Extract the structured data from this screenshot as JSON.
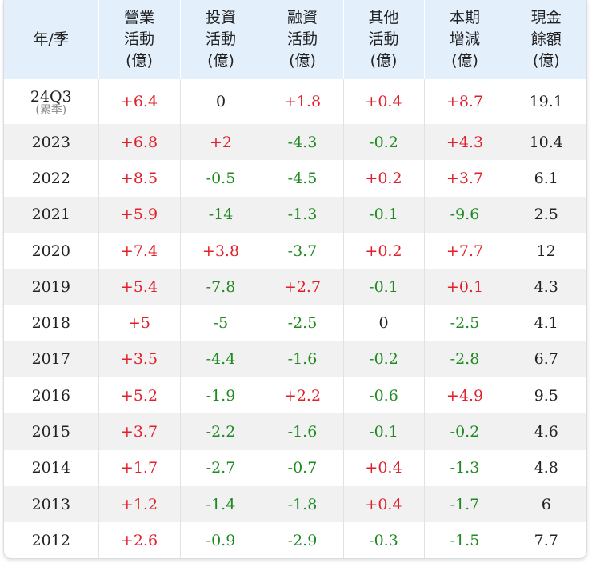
{
  "table": {
    "header": [
      [
        "年/季"
      ],
      [
        "營業",
        "活動",
        "(億)"
      ],
      [
        "投資",
        "活動",
        "(億)"
      ],
      [
        "融資",
        "活動",
        "(億)"
      ],
      [
        "其他",
        "活動",
        "(億)"
      ],
      [
        "本期",
        "增減",
        "(億)"
      ],
      [
        "現金",
        "餘額",
        "(億)"
      ]
    ],
    "rows": [
      {
        "period": "24Q3",
        "note": "(累季)",
        "cells": [
          "+6.4",
          "0",
          "+1.8",
          "+0.4",
          "+8.7",
          "19.1"
        ]
      },
      {
        "period": "2023",
        "cells": [
          "+6.8",
          "+2",
          "-4.3",
          "-0.2",
          "+4.3",
          "10.4"
        ]
      },
      {
        "period": "2022",
        "cells": [
          "+8.5",
          "-0.5",
          "-4.5",
          "+0.2",
          "+3.7",
          "6.1"
        ]
      },
      {
        "period": "2021",
        "cells": [
          "+5.9",
          "-14",
          "-1.3",
          "-0.1",
          "-9.6",
          "2.5"
        ]
      },
      {
        "period": "2020",
        "cells": [
          "+7.4",
          "+3.8",
          "-3.7",
          "+0.2",
          "+7.7",
          "12"
        ]
      },
      {
        "period": "2019",
        "cells": [
          "+5.4",
          "-7.8",
          "+2.7",
          "-0.1",
          "+0.1",
          "4.3"
        ]
      },
      {
        "period": "2018",
        "cells": [
          "+5",
          "-5",
          "-2.5",
          "0",
          "-2.5",
          "4.1"
        ]
      },
      {
        "period": "2017",
        "cells": [
          "+3.5",
          "-4.4",
          "-1.6",
          "-0.2",
          "-2.8",
          "6.7"
        ]
      },
      {
        "period": "2016",
        "cells": [
          "+5.2",
          "-1.9",
          "+2.2",
          "-0.6",
          "+4.9",
          "9.5"
        ]
      },
      {
        "period": "2015",
        "cells": [
          "+3.7",
          "-2.2",
          "-1.6",
          "-0.1",
          "-0.2",
          "4.6"
        ]
      },
      {
        "period": "2014",
        "cells": [
          "+1.7",
          "-2.7",
          "-0.7",
          "+0.4",
          "-1.3",
          "4.8"
        ]
      },
      {
        "period": "2013",
        "cells": [
          "+1.2",
          "-1.4",
          "-1.8",
          "+0.4",
          "-1.7",
          "6"
        ]
      },
      {
        "period": "2012",
        "cells": [
          "+2.6",
          "-0.9",
          "-2.9",
          "-0.3",
          "-1.5",
          "7.7"
        ]
      }
    ]
  }
}
